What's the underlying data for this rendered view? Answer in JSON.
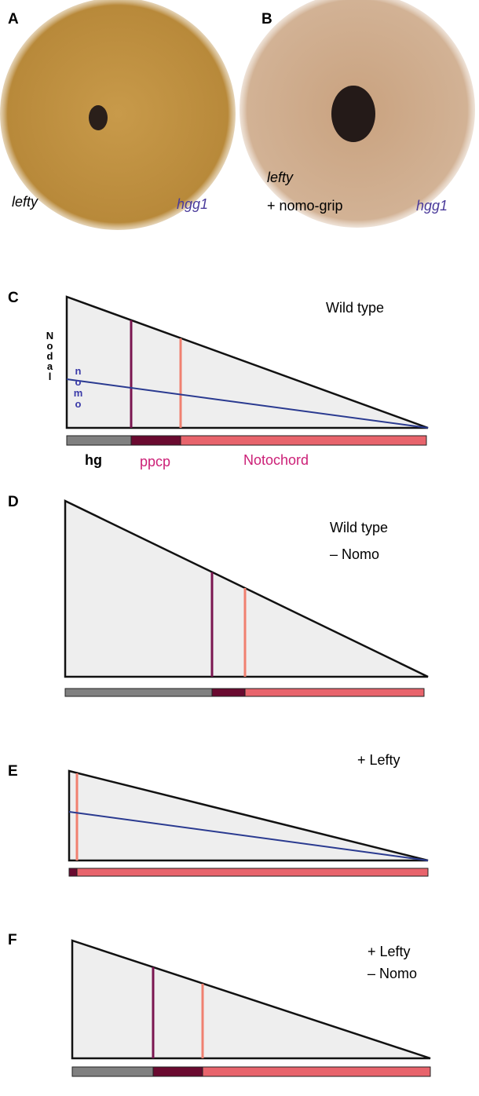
{
  "photos": [
    {
      "label": "A",
      "left_text": "lefty",
      "right_text": "hgg1"
    },
    {
      "label": "B",
      "left_text": "lefty",
      "left_text_2": "+ nomo-grip",
      "right_text": "hgg1"
    }
  ],
  "diagrams": [
    {
      "label": "C",
      "condition": "Wild type",
      "y_label": "Nodal",
      "line_label": "nomo",
      "bar_labels": [
        "hg",
        "ppcp",
        "Notochord"
      ]
    },
    {
      "label": "D",
      "condition": "Wild type",
      "condition_2": "– Nomo"
    },
    {
      "label": "E",
      "condition": "+ Lefty"
    },
    {
      "label": "F",
      "condition": "+ Lefty",
      "condition_2": "– Nomo"
    }
  ]
}
